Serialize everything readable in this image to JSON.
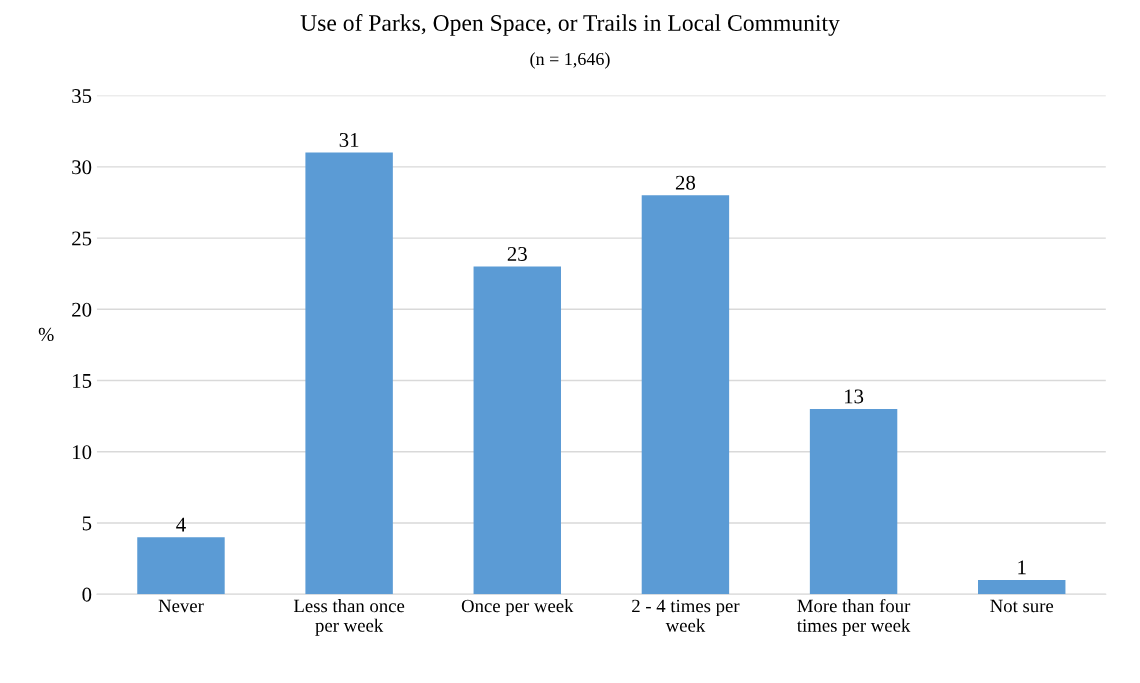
{
  "chart_data": {
    "type": "bar",
    "title": "Use of Parks, Open Space, or Trails in Local Community",
    "subtitle": "(n = 1,646)",
    "ylabel": "%",
    "categories": [
      "Never",
      "Less than once\nper week",
      "Once per week",
      "2 - 4 times per\nweek",
      "More than four\ntimes per week",
      "Not sure"
    ],
    "values": [
      4,
      31,
      23,
      28,
      13,
      1
    ],
    "color": "#5b9bd5",
    "ylim": [
      0,
      35
    ],
    "yticks": [
      0,
      5,
      10,
      15,
      20,
      25,
      30,
      35
    ],
    "grid": "y",
    "data_labels": true
  }
}
